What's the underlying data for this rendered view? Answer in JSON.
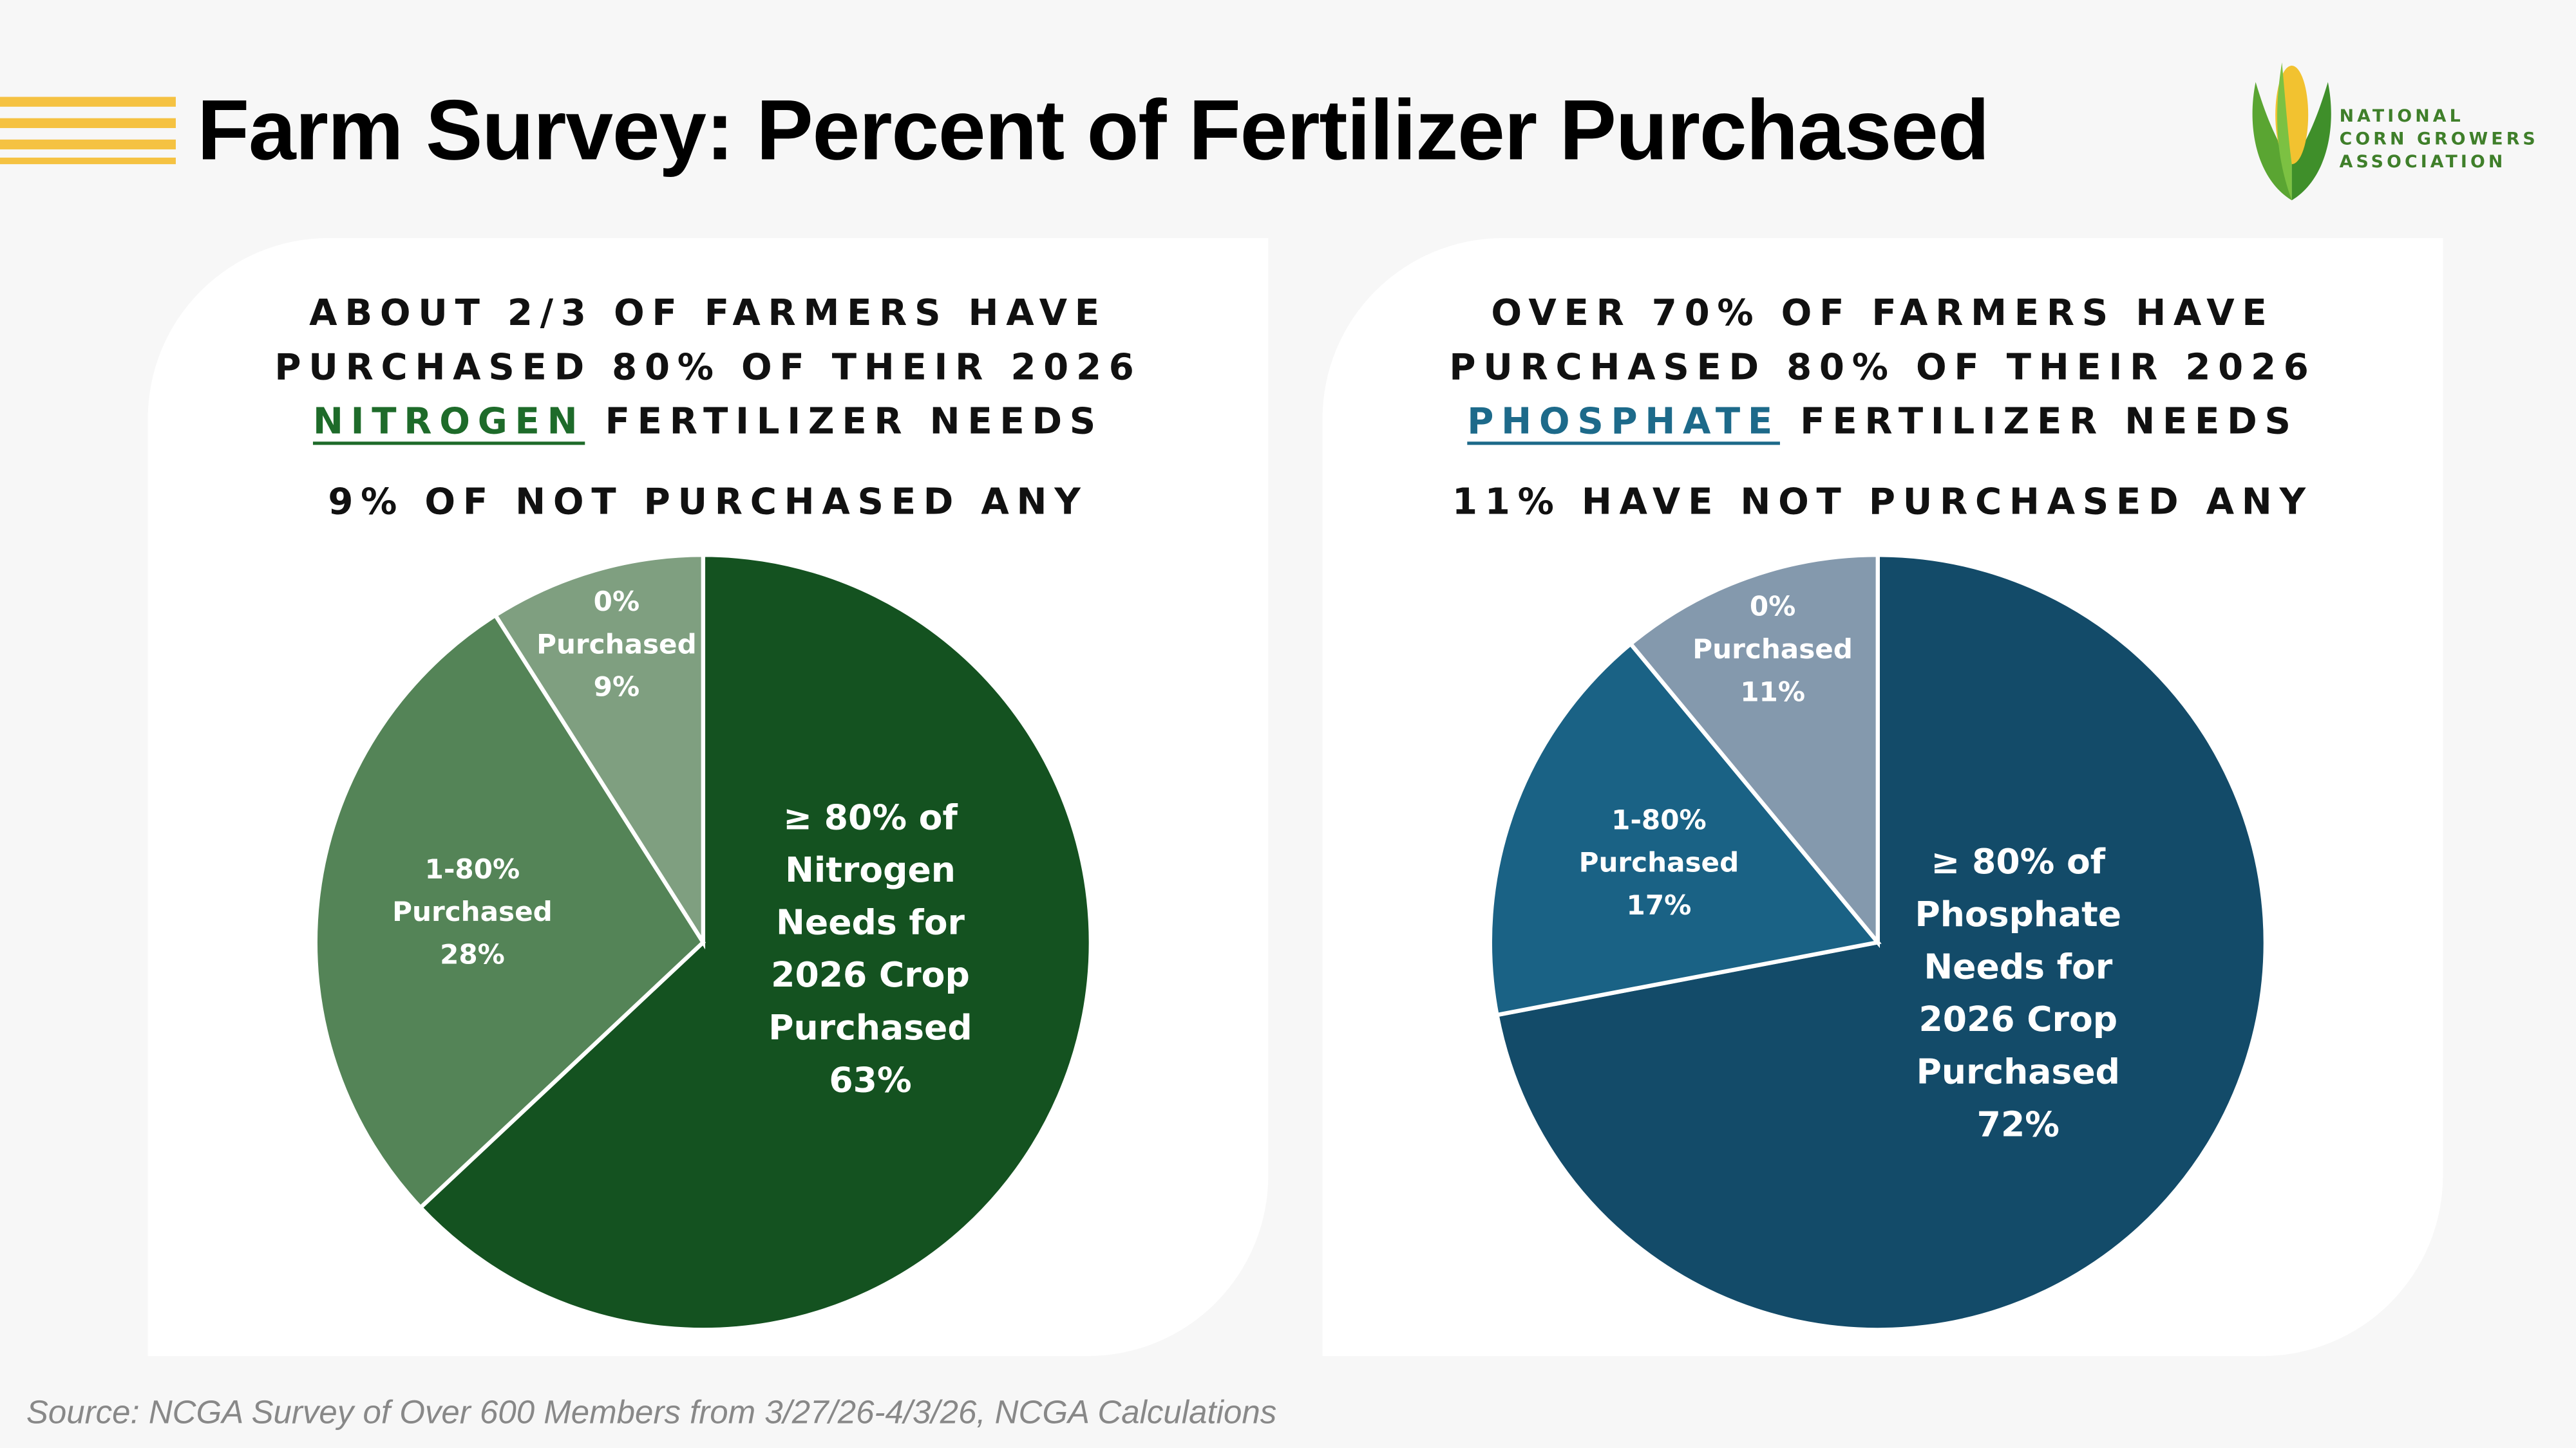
{
  "header": {
    "title": "Farm Survey: Percent of Fertilizer Purchased",
    "logo_lines": [
      "NATIONAL",
      "CORN GROWERS",
      "ASSOCIATION"
    ]
  },
  "source": "Source: NCGA Survey of Over 600 Members from 3/27/26-4/3/26, NCGA Calculations",
  "chart_data": [
    {
      "type": "pie",
      "title_lines": [
        "ABOUT 2/3 OF FARMERS HAVE",
        "PURCHASED 80% OF THEIR 2026"
      ],
      "title_highlight": "NITROGEN",
      "title_end": "FERTILIZER NEEDS",
      "highlight_color": "#1e6b2a",
      "subtitle": "9% OF NOT PURCHASED ANY",
      "categories": [
        "≥ 80% of Nitrogen Needs for 2026 Crop Purchased",
        "1-80% Purchased",
        "0% Purchased"
      ],
      "values": [
        63,
        28,
        9
      ],
      "value_labels": [
        "63%",
        "28%",
        "9%"
      ],
      "colors": [
        "#145220",
        "#548457",
        "#7f9f80"
      ]
    },
    {
      "type": "pie",
      "title_lines": [
        "OVER 70% OF FARMERS HAVE",
        "PURCHASED 80% OF THEIR 2026"
      ],
      "title_highlight": "PHOSPHATE",
      "title_end": "FERTILIZER NEEDS",
      "highlight_color": "#1d6a8a",
      "subtitle": "11% HAVE NOT PURCHASED ANY",
      "categories": [
        "≥ 80% of Phosphate Needs for 2026 Crop Purchased",
        "1-80% Purchased",
        "0% Purchased"
      ],
      "values": [
        72,
        17,
        11
      ],
      "value_labels": [
        "72%",
        "17%",
        "11%"
      ],
      "colors": [
        "#134b69",
        "#1a6285",
        "#8499ad"
      ]
    }
  ]
}
